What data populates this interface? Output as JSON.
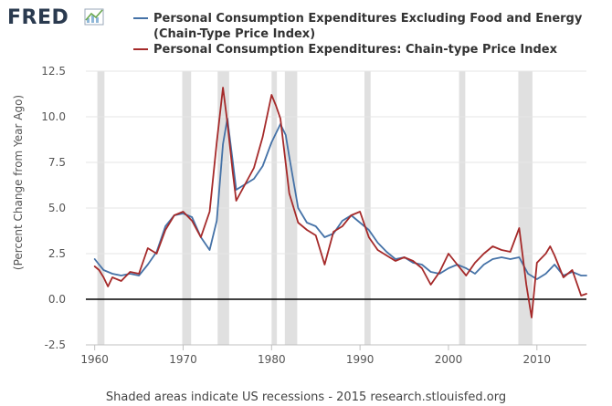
{
  "brand": {
    "name": "FRED"
  },
  "chart_data": {
    "type": "line",
    "title": "",
    "xlabel": "",
    "ylabel": "(Percent Change from Year Ago)",
    "xlim": [
      1959.0,
      2015.6
    ],
    "ylim": [
      -2.5,
      12.5
    ],
    "x_ticks": [
      1960,
      1970,
      1980,
      1990,
      2000,
      2010
    ],
    "y_ticks": [
      -2.5,
      0.0,
      2.5,
      5.0,
      7.5,
      10.0,
      12.5
    ],
    "y_tick_labels": [
      "-2.5",
      "0.0",
      "2.5",
      "5.0",
      "7.5",
      "10.0",
      "12.5"
    ],
    "zero_line": 0,
    "recessions": [
      [
        1960.3,
        1961.1
      ],
      [
        1969.9,
        1970.9
      ],
      [
        1973.9,
        1975.2
      ],
      [
        1980.0,
        1980.6
      ],
      [
        1981.5,
        1982.9
      ],
      [
        1990.5,
        1991.2
      ],
      [
        2001.2,
        2001.9
      ],
      [
        2007.9,
        2009.5
      ]
    ],
    "series": [
      {
        "name": "Personal Consumption Expenditures Excluding Food and Energy",
        "name_line2": "(Chain-Type Price Index)",
        "color": "#4572a7",
        "points": [
          [
            1960.0,
            2.2
          ],
          [
            1960.5,
            1.9
          ],
          [
            1961.0,
            1.6
          ],
          [
            1962.0,
            1.4
          ],
          [
            1963.0,
            1.3
          ],
          [
            1964.0,
            1.4
          ],
          [
            1965.0,
            1.3
          ],
          [
            1966.0,
            1.9
          ],
          [
            1967.0,
            2.6
          ],
          [
            1968.0,
            4.0
          ],
          [
            1969.0,
            4.6
          ],
          [
            1970.0,
            4.7
          ],
          [
            1971.0,
            4.5
          ],
          [
            1972.0,
            3.4
          ],
          [
            1973.0,
            2.7
          ],
          [
            1973.8,
            4.3
          ],
          [
            1974.5,
            8.5
          ],
          [
            1975.0,
            9.9
          ],
          [
            1975.6,
            7.6
          ],
          [
            1976.0,
            6.0
          ],
          [
            1977.0,
            6.3
          ],
          [
            1978.0,
            6.6
          ],
          [
            1979.0,
            7.3
          ],
          [
            1980.0,
            8.6
          ],
          [
            1981.0,
            9.6
          ],
          [
            1981.6,
            9.0
          ],
          [
            1982.0,
            7.8
          ],
          [
            1983.0,
            5.0
          ],
          [
            1984.0,
            4.2
          ],
          [
            1985.0,
            4.0
          ],
          [
            1986.0,
            3.4
          ],
          [
            1987.0,
            3.6
          ],
          [
            1988.0,
            4.3
          ],
          [
            1989.0,
            4.6
          ],
          [
            1990.0,
            4.2
          ],
          [
            1991.0,
            3.8
          ],
          [
            1992.0,
            3.1
          ],
          [
            1993.0,
            2.6
          ],
          [
            1994.0,
            2.2
          ],
          [
            1995.0,
            2.3
          ],
          [
            1996.0,
            2.0
          ],
          [
            1997.0,
            1.9
          ],
          [
            1998.0,
            1.5
          ],
          [
            1999.0,
            1.4
          ],
          [
            2000.0,
            1.7
          ],
          [
            2001.0,
            1.9
          ],
          [
            2002.0,
            1.7
          ],
          [
            2003.0,
            1.4
          ],
          [
            2004.0,
            1.9
          ],
          [
            2005.0,
            2.2
          ],
          [
            2006.0,
            2.3
          ],
          [
            2007.0,
            2.2
          ],
          [
            2008.0,
            2.3
          ],
          [
            2009.0,
            1.4
          ],
          [
            2010.0,
            1.1
          ],
          [
            2011.0,
            1.4
          ],
          [
            2012.0,
            1.9
          ],
          [
            2013.0,
            1.3
          ],
          [
            2014.0,
            1.5
          ],
          [
            2015.0,
            1.3
          ],
          [
            2015.6,
            1.3
          ]
        ]
      },
      {
        "name": "Personal Consumption Expenditures: Chain-type Price Index",
        "color": "#a52a2a",
        "points": [
          [
            1960.0,
            1.8
          ],
          [
            1960.5,
            1.6
          ],
          [
            1961.0,
            1.2
          ],
          [
            1961.5,
            0.7
          ],
          [
            1962.0,
            1.2
          ],
          [
            1963.0,
            1.0
          ],
          [
            1964.0,
            1.5
          ],
          [
            1965.0,
            1.4
          ],
          [
            1966.0,
            2.8
          ],
          [
            1967.0,
            2.5
          ],
          [
            1968.0,
            3.8
          ],
          [
            1969.0,
            4.6
          ],
          [
            1970.0,
            4.8
          ],
          [
            1971.0,
            4.3
          ],
          [
            1972.0,
            3.4
          ],
          [
            1973.0,
            4.8
          ],
          [
            1973.8,
            8.6
          ],
          [
            1974.5,
            11.6
          ],
          [
            1975.0,
            9.7
          ],
          [
            1975.6,
            7.0
          ],
          [
            1976.0,
            5.4
          ],
          [
            1977.0,
            6.3
          ],
          [
            1978.0,
            7.2
          ],
          [
            1979.0,
            8.9
          ],
          [
            1980.0,
            11.2
          ],
          [
            1980.5,
            10.6
          ],
          [
            1981.0,
            9.9
          ],
          [
            1982.0,
            5.8
          ],
          [
            1983.0,
            4.2
          ],
          [
            1984.0,
            3.8
          ],
          [
            1985.0,
            3.5
          ],
          [
            1986.0,
            1.9
          ],
          [
            1987.0,
            3.7
          ],
          [
            1988.0,
            4.0
          ],
          [
            1989.0,
            4.6
          ],
          [
            1990.0,
            4.8
          ],
          [
            1991.0,
            3.4
          ],
          [
            1992.0,
            2.7
          ],
          [
            1993.0,
            2.4
          ],
          [
            1994.0,
            2.1
          ],
          [
            1995.0,
            2.3
          ],
          [
            1996.0,
            2.1
          ],
          [
            1997.0,
            1.7
          ],
          [
            1998.0,
            0.8
          ],
          [
            1999.0,
            1.5
          ],
          [
            2000.0,
            2.5
          ],
          [
            2001.0,
            1.9
          ],
          [
            2002.0,
            1.3
          ],
          [
            2003.0,
            2.0
          ],
          [
            2004.0,
            2.5
          ],
          [
            2005.0,
            2.9
          ],
          [
            2006.0,
            2.7
          ],
          [
            2007.0,
            2.6
          ],
          [
            2008.0,
            3.9
          ],
          [
            2008.8,
            0.8
          ],
          [
            2009.4,
            -1.0
          ],
          [
            2010.0,
            2.0
          ],
          [
            2011.0,
            2.5
          ],
          [
            2011.5,
            2.9
          ],
          [
            2012.0,
            2.4
          ],
          [
            2013.0,
            1.2
          ],
          [
            2014.0,
            1.6
          ],
          [
            2015.0,
            0.2
          ],
          [
            2015.6,
            0.3
          ]
        ]
      }
    ]
  },
  "footer": "Shaded areas indicate US recessions - 2015 research.stlouisfed.org"
}
